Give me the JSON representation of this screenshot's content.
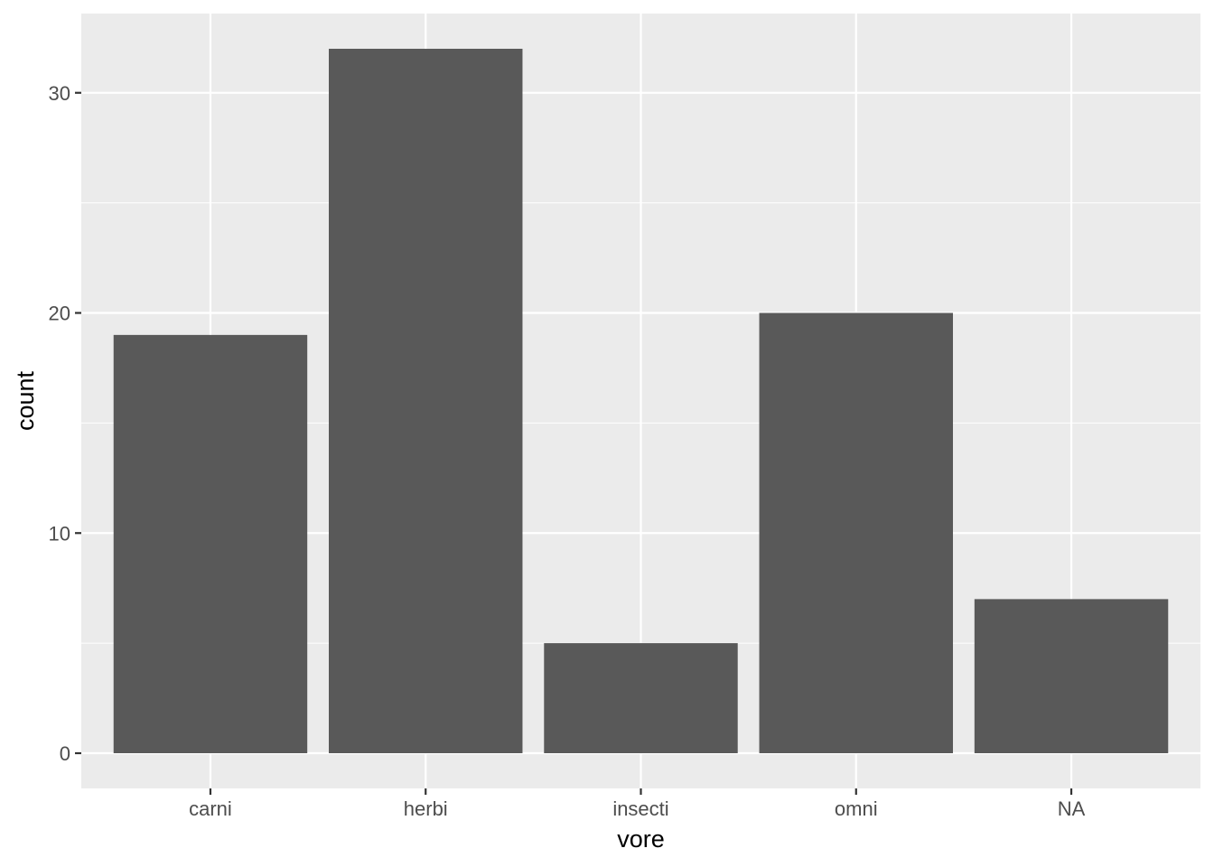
{
  "chart_data": {
    "type": "bar",
    "categories": [
      "carni",
      "herbi",
      "insecti",
      "omni",
      "NA"
    ],
    "values": [
      19,
      32,
      5,
      20,
      7
    ],
    "title": "",
    "xlabel": "vore",
    "ylabel": "count",
    "ylim": [
      -1.6,
      33.6
    ],
    "yticks": [
      0,
      10,
      20,
      30
    ],
    "grid": true,
    "legend": "none",
    "colors": {
      "bar": "#595959",
      "panel": "#ebebeb",
      "grid": "#ffffff",
      "tick_text": "#4d4d4d",
      "axis_title": "#000000"
    }
  }
}
